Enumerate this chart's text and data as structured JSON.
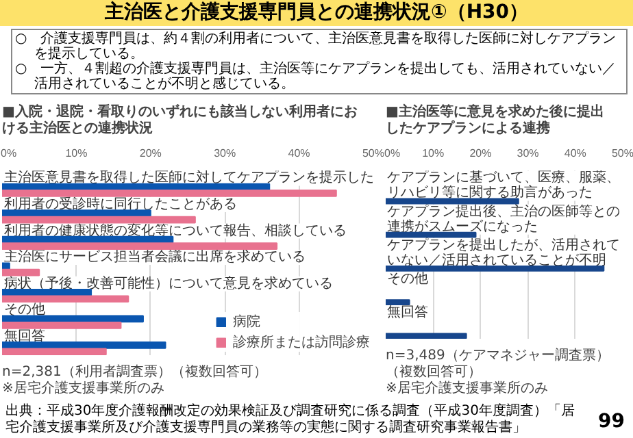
{
  "chart_data": [
    {
      "type": "other",
      "title": "主治医と介護支援専門員との連携状況①（H30）",
      "annotations": [
        "○　介護支援専門員は、約４割の利用者について、主治医意見書を取得した医師に対しケアプランを提示している。",
        "○　一方、４割超の介護支援専門員は、主治医等にケアプランを提出しても、活用されていない／活用されていることが不明と感じている。",
        "出典：平成30年度介護報酬改定の効果検証及び調査研究に係る調査（平成30年度調査）「居宅介護支援事業所及び介護支援専門員の業務等の実態に関する調査研究事業報告書」",
        "99"
      ]
    },
    {
      "type": "bar",
      "orientation": "horizontal",
      "title": "■入院・退院・看取りのいずれにも該当しない利用者における主治医との連携状況",
      "categories": [
        "主治医意見書を取得した医師に対してケアプランを提示した",
        "利用者の受診時に同行したことがある",
        "利用者の健康状態の変化等について報告、相談している",
        "主治医にサービス担当者会議に出席を求めている",
        "病状（予後・改善可能性）について意見を求めている",
        "その他",
        "無回答"
      ],
      "series": [
        {
          "name": "病院",
          "color": "#0a56b0",
          "values": [
            36,
            20,
            23,
            1,
            12,
            19,
            22
          ]
        },
        {
          "name": "診療所または訪問診療",
          "color": "#e8728f",
          "values": [
            45,
            26,
            37,
            5,
            17,
            16,
            14
          ]
        }
      ],
      "xlim": [
        0,
        50
      ],
      "xticks": [
        {
          "value": 0,
          "label": "0%"
        },
        {
          "value": 10,
          "label": "10%"
        },
        {
          "value": 20,
          "label": "20%"
        },
        {
          "value": 30,
          "label": "30%"
        },
        {
          "value": 40,
          "label": "40%"
        },
        {
          "value": 50,
          "label": "50%"
        }
      ],
      "grid": "x",
      "legend": "bottom right",
      "annotations": [
        "n=2,381（利用者調査票）（複数回答可）",
        "※居宅介護支援事業所のみ"
      ]
    },
    {
      "type": "bar",
      "orientation": "horizontal",
      "title": "■主治医等に意見を求めた後に提出したケアプランによる連携",
      "categories": [
        "ケアプランに基づいて、医療、服薬、リハビリ等に関する助言があった",
        "ケアプラン提出後、主治の医師等との連携がスムーズになった",
        "ケアプランを提出したが、活用されていない／活用されていることが不明",
        "その他",
        "無回答"
      ],
      "values": [
        28,
        19,
        46,
        5,
        17
      ],
      "color": "#17468c",
      "xlim": [
        0,
        50
      ],
      "xticks": [
        {
          "value": 0,
          "label": "0%"
        },
        {
          "value": 10,
          "label": "10%"
        },
        {
          "value": 20,
          "label": "20%"
        },
        {
          "value": 30,
          "label": "30%"
        },
        {
          "value": 40,
          "label": "40%"
        },
        {
          "value": 50,
          "label": "50%"
        }
      ],
      "grid": "x",
      "annotations": [
        "n=3,489（ケアマネジャー調査票）（複数回答可）",
        "※居宅介護支援事業所のみ"
      ]
    }
  ]
}
